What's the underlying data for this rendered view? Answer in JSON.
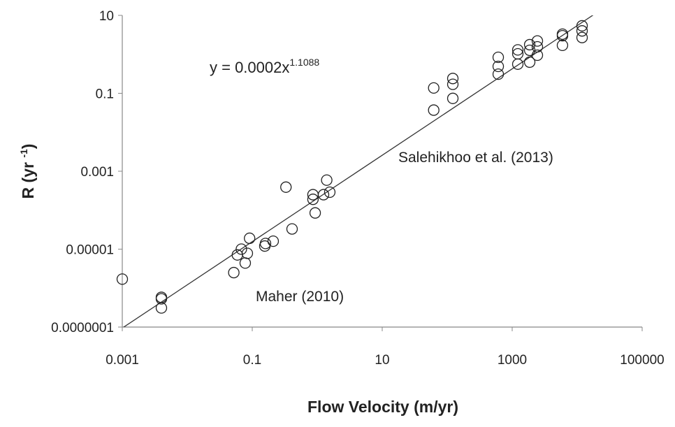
{
  "chart_data": {
    "type": "scatter",
    "xlabel": "Flow Velocity (m/yr)",
    "ylabel_parts": [
      "R (yr ",
      "-1",
      ")"
    ],
    "equation_parts": [
      "y = 0.0002x",
      "1.1088"
    ],
    "fit": {
      "a": 0.0002,
      "b": 1.1088
    },
    "annotations": [
      "Salehikhoo et al. (2013)",
      "Maher (2010)"
    ],
    "xlog": true,
    "ylog": true,
    "color": "#222222",
    "xlim": [
      0.001,
      100000
    ],
    "ylim": [
      1e-07,
      10
    ],
    "xticks": [
      0.001,
      0.1,
      10,
      1000,
      100000
    ],
    "yticks": [
      {
        "value": 1e-07,
        "label": "0.0000001"
      },
      1e-05,
      0.001,
      0.1,
      10
    ],
    "x": [
      0.001,
      0.004,
      0.004,
      0.004,
      0.052,
      0.059,
      0.068,
      0.078,
      0.084,
      0.091,
      0.156,
      0.16,
      0.21,
      0.33,
      0.41,
      0.86,
      0.86,
      0.93,
      1.25,
      1.4,
      1.56,
      62,
      62,
      122,
      122,
      122,
      610,
      610,
      610,
      1220,
      1220,
      1220,
      1860,
      1860,
      1860,
      2440,
      2440,
      2440,
      5940,
      5940,
      5940,
      11900,
      11900,
      11900
    ],
    "values": [
      1.7e-06,
      5.3e-07,
      5.8e-07,
      3.1e-07,
      2.5e-06,
      7.1e-06,
      1e-05,
      4.4e-06,
      7.8e-06,
      1.9e-05,
      1.2e-05,
      1.4e-05,
      1.6e-05,
      0.00039,
      3.3e-05,
      0.00025,
      0.00019,
      8.5e-05,
      0.00025,
      0.00059,
      0.00029,
      0.137,
      0.037,
      0.24,
      0.17,
      0.074,
      0.84,
      0.49,
      0.31,
      1.3,
      1.03,
      0.56,
      1.77,
      1.27,
      0.63,
      2.2,
      1.56,
      0.95,
      3.3,
      3.0,
      1.7,
      5.4,
      4.0,
      2.7
    ]
  }
}
